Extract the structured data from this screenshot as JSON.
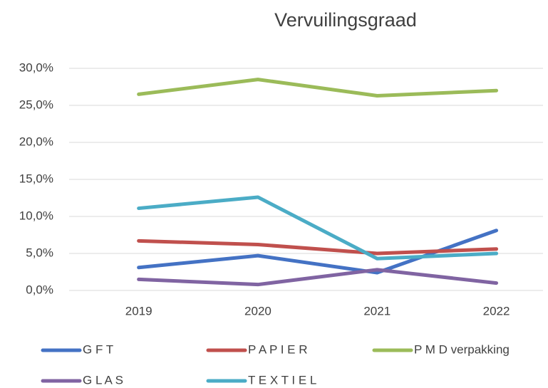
{
  "chart_data": {
    "type": "line",
    "title": "Vervuilingsgraad",
    "categories": [
      "2019",
      "2020",
      "2021",
      "2022"
    ],
    "series": [
      {
        "name": "G F T",
        "color": "#4472c4",
        "values": [
          3.1,
          4.7,
          2.4,
          8.1
        ]
      },
      {
        "name": "P A P I E R",
        "color": "#c0504d",
        "values": [
          6.7,
          6.2,
          5.0,
          5.6
        ]
      },
      {
        "name": "P M D verpakking",
        "color": "#9bbb59",
        "values": [
          26.5,
          28.5,
          26.3,
          27.0
        ]
      },
      {
        "name": "G L A S",
        "color": "#8064a2",
        "values": [
          1.5,
          0.8,
          2.8,
          1.0
        ]
      },
      {
        "name": "T E X T I E L",
        "color": "#4bacc6",
        "values": [
          11.1,
          12.6,
          4.3,
          5.0
        ]
      }
    ],
    "ylim": [
      0,
      30
    ],
    "yticks": [
      {
        "value": 0,
        "label": "0,0%"
      },
      {
        "value": 5,
        "label": "5,0%"
      },
      {
        "value": 10,
        "label": "10,0%"
      },
      {
        "value": 15,
        "label": "15,0%"
      },
      {
        "value": 20,
        "label": "20,0%"
      },
      {
        "value": 25,
        "label": "25,0%"
      },
      {
        "value": 30,
        "label": "30,0%"
      }
    ],
    "grid": true,
    "legend": "bottom"
  }
}
